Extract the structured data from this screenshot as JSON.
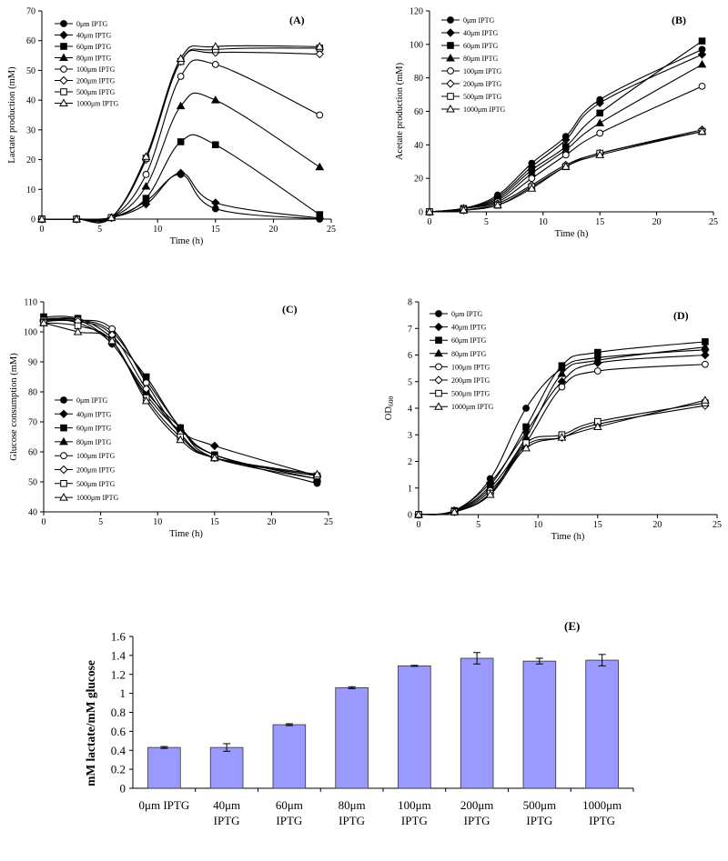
{
  "chart_data": [
    {
      "id": "A",
      "type": "line",
      "panel_label": "(A)",
      "title": "",
      "xlabel": "Time (h)",
      "ylabel": "Lactate production (mM)",
      "xlim": [
        0,
        25
      ],
      "ylim": [
        0,
        70
      ],
      "xticks": [
        0,
        5,
        10,
        15,
        20,
        25
      ],
      "yticks": [
        0,
        10,
        20,
        30,
        40,
        50,
        60,
        70
      ],
      "legend_position": "top-left",
      "x": [
        0,
        3,
        6,
        9,
        12,
        15,
        24
      ],
      "series": [
        {
          "name": "0μm IPTG",
          "marker": "circle-filled",
          "values": [
            0,
            0,
            0.5,
            6,
            15,
            3.5,
            0
          ]
        },
        {
          "name": "40μm IPTG",
          "marker": "diamond-filled",
          "values": [
            0,
            0,
            0.5,
            5,
            15.5,
            5.5,
            0.3
          ]
        },
        {
          "name": "60μm IPTG",
          "marker": "square-filled",
          "values": [
            0,
            0,
            0.5,
            7,
            26,
            25,
            1.5
          ]
        },
        {
          "name": "80μm IPTG",
          "marker": "triangle-filled",
          "values": [
            0,
            0,
            0.5,
            11,
            38,
            40,
            17.5
          ]
        },
        {
          "name": "100μm IPTG",
          "marker": "circle-open",
          "values": [
            0,
            0,
            0.5,
            15,
            48,
            52,
            35
          ]
        },
        {
          "name": "200μm IPTG",
          "marker": "diamond-open",
          "values": [
            0,
            0,
            0.5,
            20,
            53,
            56,
            55.5
          ]
        },
        {
          "name": "500μm IPTG",
          "marker": "square-open",
          "values": [
            0,
            0,
            0.5,
            20.5,
            53,
            57,
            57.5
          ]
        },
        {
          "name": "1000μm IPTG",
          "marker": "triangle-open",
          "values": [
            0,
            0,
            0.5,
            21,
            54,
            58,
            58
          ]
        }
      ]
    },
    {
      "id": "B",
      "type": "line",
      "panel_label": "(B)",
      "title": "",
      "xlabel": "Time (h)",
      "ylabel": "Acetate production (mM)",
      "xlim": [
        0,
        25
      ],
      "ylim": [
        0,
        120
      ],
      "xticks": [
        0,
        5,
        10,
        15,
        20,
        25
      ],
      "yticks": [
        0,
        20,
        40,
        60,
        80,
        100,
        120
      ],
      "legend_position": "top-left",
      "x": [
        0,
        3,
        6,
        9,
        12,
        15,
        24
      ],
      "series": [
        {
          "name": "0μm IPTG",
          "marker": "circle-filled",
          "values": [
            0,
            2,
            10,
            29,
            45,
            67,
            97
          ]
        },
        {
          "name": "40μm IPTG",
          "marker": "diamond-filled",
          "values": [
            0,
            2,
            9,
            27,
            43,
            65,
            94
          ]
        },
        {
          "name": "60μm IPTG",
          "marker": "square-filled",
          "values": [
            0,
            2,
            8,
            25,
            39,
            59,
            102
          ]
        },
        {
          "name": "80μm IPTG",
          "marker": "triangle-filled",
          "values": [
            0,
            2,
            7,
            23,
            37,
            53,
            88
          ]
        },
        {
          "name": "100μm IPTG",
          "marker": "circle-open",
          "values": [
            0,
            2,
            6,
            20,
            34,
            47,
            75
          ]
        },
        {
          "name": "200μm IPTG",
          "marker": "diamond-open",
          "values": [
            0,
            1,
            5,
            16,
            28,
            35,
            49
          ]
        },
        {
          "name": "500μm IPTG",
          "marker": "square-open",
          "values": [
            0,
            1,
            4,
            15,
            27,
            35,
            48
          ]
        },
        {
          "name": "1000μm IPTG",
          "marker": "triangle-open",
          "values": [
            0,
            1,
            4,
            14,
            27,
            34,
            48
          ]
        }
      ]
    },
    {
      "id": "C",
      "type": "line",
      "panel_label": "(C)",
      "title": "",
      "xlabel": "Time (h)",
      "ylabel": "Glucose consumption (mM)",
      "xlim": [
        0,
        25
      ],
      "ylim": [
        40,
        110
      ],
      "xticks": [
        0,
        5,
        10,
        15,
        20,
        25
      ],
      "yticks": [
        40,
        50,
        60,
        70,
        80,
        90,
        100,
        110
      ],
      "legend_position": "bottom-left",
      "x": [
        0,
        3,
        6,
        9,
        12,
        15,
        24
      ],
      "series": [
        {
          "name": "0μm IPTG",
          "marker": "circle-filled",
          "values": [
            104,
            104,
            96,
            80,
            68,
            59,
            49.5
          ]
        },
        {
          "name": "40μm IPTG",
          "marker": "diamond-filled",
          "values": [
            104,
            103,
            96,
            79,
            67,
            62,
            52
          ]
        },
        {
          "name": "60μm IPTG",
          "marker": "square-filled",
          "values": [
            105,
            104.5,
            98,
            85,
            68,
            59,
            51
          ]
        },
        {
          "name": "80μm IPTG",
          "marker": "triangle-filled",
          "values": [
            104.5,
            104,
            100,
            84,
            68,
            58,
            51
          ]
        },
        {
          "name": "100μm IPTG",
          "marker": "circle-open",
          "values": [
            104,
            104,
            101,
            83,
            66,
            58,
            52
          ]
        },
        {
          "name": "200μm IPTG",
          "marker": "diamond-open",
          "values": [
            103.5,
            103.5,
            99,
            81,
            66,
            58,
            52
          ]
        },
        {
          "name": "500μm IPTG",
          "marker": "square-open",
          "values": [
            103,
            102,
            97,
            78,
            65,
            58,
            52
          ]
        },
        {
          "name": "1000μm IPTG",
          "marker": "triangle-open",
          "values": [
            103,
            100,
            97,
            77,
            64,
            58,
            52.5
          ]
        }
      ]
    },
    {
      "id": "D",
      "type": "line",
      "panel_label": "(D)",
      "title": "",
      "xlabel": "Time (h)",
      "ylabel_main": "OD",
      "ylabel_sub": "600",
      "xlim": [
        0,
        25
      ],
      "ylim": [
        0,
        8
      ],
      "xticks": [
        0,
        5,
        10,
        15,
        20,
        25
      ],
      "yticks": [
        0,
        1,
        2,
        3,
        4,
        5,
        6,
        7,
        8
      ],
      "legend_position": "top-left",
      "x": [
        0,
        3,
        6,
        9,
        12,
        15,
        24
      ],
      "series": [
        {
          "name": "0μm IPTG",
          "marker": "circle-filled",
          "values": [
            0,
            0.15,
            1.35,
            4.0,
            5.5,
            5.9,
            6.2
          ]
        },
        {
          "name": "40μm IPTG",
          "marker": "diamond-filled",
          "values": [
            0,
            0.15,
            1.2,
            3.1,
            5.0,
            5.7,
            6.0
          ]
        },
        {
          "name": "60μm IPTG",
          "marker": "square-filled",
          "values": [
            0,
            0.15,
            1.1,
            3.3,
            5.6,
            6.1,
            6.5
          ]
        },
        {
          "name": "80μm IPTG",
          "marker": "triangle-filled",
          "values": [
            0,
            0.12,
            1.0,
            2.9,
            5.3,
            5.8,
            6.3
          ]
        },
        {
          "name": "100μm IPTG",
          "marker": "circle-open",
          "values": [
            0,
            0.1,
            0.9,
            2.7,
            4.8,
            5.4,
            5.65
          ]
        },
        {
          "name": "200μm IPTG",
          "marker": "diamond-open",
          "values": [
            0,
            0.1,
            0.8,
            2.6,
            2.9,
            3.4,
            4.1
          ]
        },
        {
          "name": "500μm IPTG",
          "marker": "square-open",
          "values": [
            0,
            0.1,
            0.8,
            2.7,
            3.0,
            3.5,
            4.2
          ]
        },
        {
          "name": "1000μm IPTG",
          "marker": "triangle-open",
          "values": [
            0,
            0.1,
            0.75,
            2.5,
            2.9,
            3.3,
            4.3
          ]
        }
      ]
    },
    {
      "id": "E",
      "type": "bar",
      "panel_label": "(E)",
      "title": "",
      "xlabel": "",
      "ylabel": "mM lactate/mM glucose",
      "ylim": [
        0,
        1.6
      ],
      "yticks": [
        "0",
        "0.2",
        "0.4",
        "0.6",
        "0.8",
        "1",
        "1.2",
        "1.4",
        "1.6"
      ],
      "bar_color": "#9999ff",
      "categories": [
        [
          "0μm IPTG"
        ],
        [
          "40μm",
          "IPTG"
        ],
        [
          "60μm",
          "IPTG"
        ],
        [
          "80μm",
          "IPTG"
        ],
        [
          "100μm",
          "IPTG"
        ],
        [
          "200μm",
          "IPTG"
        ],
        [
          "500μm",
          "IPTG"
        ],
        [
          "1000μm",
          "IPTG"
        ]
      ],
      "values": [
        0.43,
        0.43,
        0.67,
        1.06,
        1.29,
        1.37,
        1.34,
        1.35
      ],
      "errors": [
        0.01,
        0.04,
        0.01,
        0.01,
        0.005,
        0.06,
        0.03,
        0.06
      ]
    }
  ]
}
